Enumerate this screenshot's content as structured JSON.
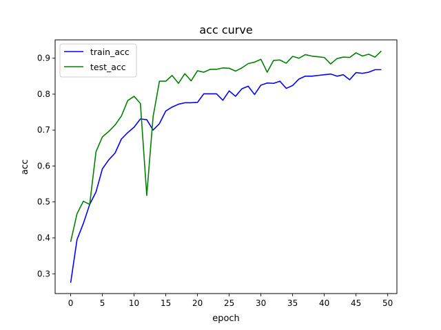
{
  "chart_data": {
    "type": "line",
    "title": "acc curve",
    "xlabel": "epoch",
    "ylabel": "acc",
    "xlim": [
      -2.45,
      51.45
    ],
    "ylim": [
      0.245,
      0.951
    ],
    "x_ticks": [
      0,
      5,
      10,
      15,
      20,
      25,
      30,
      35,
      40,
      45,
      50
    ],
    "y_ticks": [
      0.3,
      0.4,
      0.5,
      0.6,
      0.7,
      0.8,
      0.9
    ],
    "x_tick_labels": [
      "0",
      "5",
      "10",
      "15",
      "20",
      "25",
      "30",
      "35",
      "40",
      "45",
      "50"
    ],
    "y_tick_labels": [
      "0.3",
      "0.4",
      "0.5",
      "0.6",
      "0.7",
      "0.8",
      "0.9"
    ],
    "grid": false,
    "legend_position": "upper-left",
    "x": [
      0,
      1,
      2,
      3,
      4,
      5,
      6,
      7,
      8,
      9,
      10,
      11,
      12,
      13,
      14,
      15,
      16,
      17,
      18,
      19,
      20,
      21,
      22,
      23,
      24,
      25,
      26,
      27,
      28,
      29,
      30,
      31,
      32,
      33,
      34,
      35,
      36,
      37,
      38,
      39,
      40,
      41,
      42,
      43,
      44,
      45,
      46,
      47,
      48,
      49
    ],
    "series": [
      {
        "name": "train_acc",
        "color": "#0000ff",
        "values": [
          0.275,
          0.395,
          0.44,
          0.493,
          0.528,
          0.592,
          0.617,
          0.636,
          0.675,
          0.693,
          0.708,
          0.731,
          0.729,
          0.7,
          0.718,
          0.753,
          0.764,
          0.772,
          0.776,
          0.776,
          0.777,
          0.801,
          0.801,
          0.801,
          0.783,
          0.809,
          0.794,
          0.815,
          0.822,
          0.799,
          0.825,
          0.831,
          0.83,
          0.836,
          0.816,
          0.824,
          0.842,
          0.85,
          0.85,
          0.852,
          0.854,
          0.856,
          0.85,
          0.854,
          0.84,
          0.86,
          0.858,
          0.861,
          0.868,
          0.868
        ]
      },
      {
        "name": "test_acc",
        "color": "#008000",
        "values": [
          0.389,
          0.467,
          0.502,
          0.493,
          0.64,
          0.681,
          0.696,
          0.714,
          0.739,
          0.782,
          0.794,
          0.774,
          0.518,
          0.737,
          0.836,
          0.836,
          0.852,
          0.83,
          0.857,
          0.837,
          0.865,
          0.861,
          0.869,
          0.869,
          0.873,
          0.872,
          0.864,
          0.873,
          0.885,
          0.889,
          0.897,
          0.861,
          0.894,
          0.895,
          0.886,
          0.905,
          0.9,
          0.91,
          0.906,
          0.904,
          0.902,
          0.884,
          0.899,
          0.903,
          0.902,
          0.915,
          0.906,
          0.911,
          0.903,
          0.92
        ]
      }
    ]
  }
}
